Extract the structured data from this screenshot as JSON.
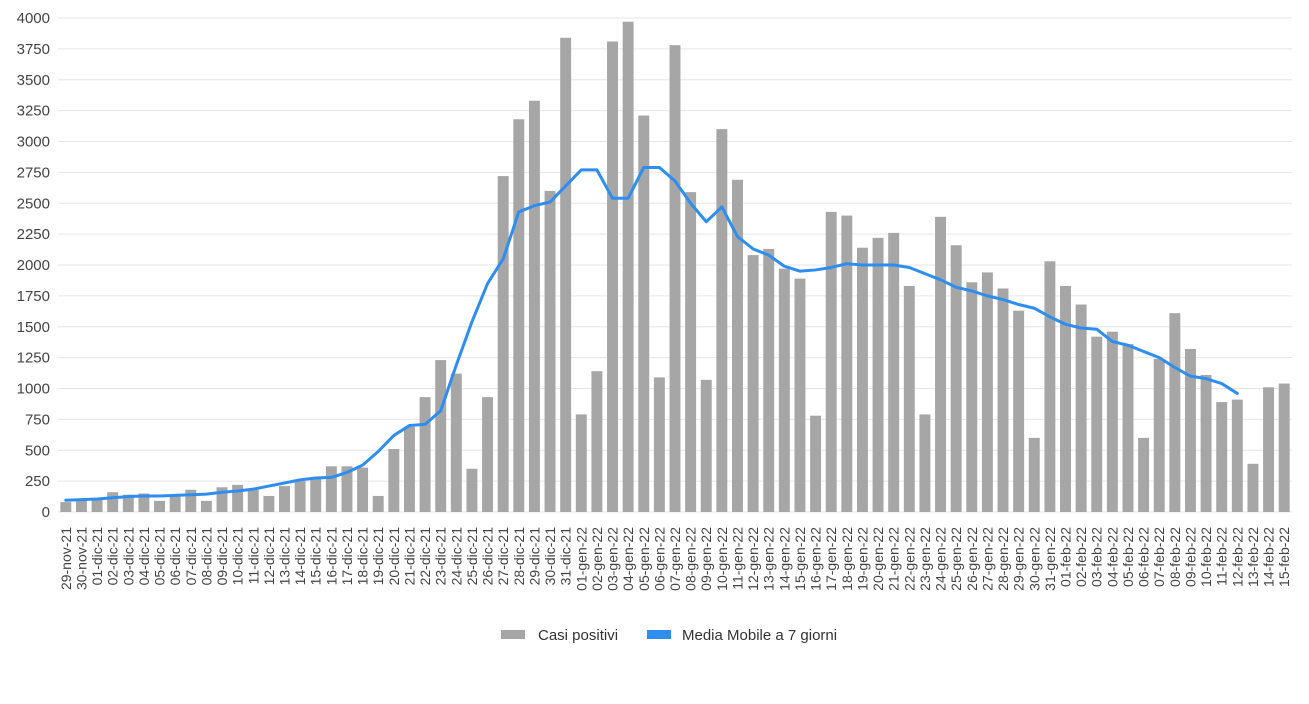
{
  "chart_data": {
    "type": "bar",
    "title": "",
    "xlabel": "",
    "ylabel": "",
    "ylim": [
      0,
      4000
    ],
    "yticks": [
      0,
      250,
      500,
      750,
      1000,
      1250,
      1500,
      1750,
      2000,
      2250,
      2500,
      2750,
      3000,
      3250,
      3500,
      3750,
      4000
    ],
    "grid": true,
    "legend_position": "bottom-center",
    "categories": [
      "29-nov-21",
      "30-nov-21",
      "01-dic-21",
      "02-dic-21",
      "03-dic-21",
      "04-dic-21",
      "05-dic-21",
      "06-dic-21",
      "07-dic-21",
      "08-dic-21",
      "09-dic-21",
      "10-dic-21",
      "11-dic-21",
      "12-dic-21",
      "13-dic-21",
      "14-dic-21",
      "15-dic-21",
      "16-dic-21",
      "17-dic-21",
      "18-dic-21",
      "19-dic-21",
      "20-dic-21",
      "21-dic-21",
      "22-dic-21",
      "23-dic-21",
      "24-dic-21",
      "25-dic-21",
      "26-dic-21",
      "27-dic-21",
      "28-dic-21",
      "29-dic-21",
      "30-dic-21",
      "31-dic-21",
      "01-gen-22",
      "02-gen-22",
      "03-gen-22",
      "04-gen-22",
      "05-gen-22",
      "06-gen-22",
      "07-gen-22",
      "08-gen-22",
      "09-gen-22",
      "10-gen-22",
      "11-gen-22",
      "12-gen-22",
      "13-gen-22",
      "14-gen-22",
      "15-gen-22",
      "16-gen-22",
      "17-gen-22",
      "18-gen-22",
      "19-gen-22",
      "20-gen-22",
      "21-gen-22",
      "22-gen-22",
      "23-gen-22",
      "24-gen-22",
      "25-gen-22",
      "26-gen-22",
      "27-gen-22",
      "28-gen-22",
      "29-gen-22",
      "30-gen-22",
      "31-gen-22",
      "01-feb-22",
      "02-feb-22",
      "03-feb-22",
      "04-feb-22",
      "05-feb-22",
      "06-feb-22",
      "07-feb-22",
      "08-feb-22",
      "09-feb-22",
      "10-feb-22",
      "11-feb-22",
      "12-feb-22",
      "13-feb-22",
      "14-feb-22",
      "15-feb-22"
    ],
    "series": [
      {
        "name": "Casi positivi",
        "kind": "bar",
        "color": "#a6a6a6",
        "values": [
          80,
          105,
          100,
          160,
          140,
          150,
          90,
          140,
          180,
          90,
          200,
          220,
          180,
          130,
          210,
          250,
          270,
          370,
          370,
          360,
          130,
          510,
          690,
          930,
          1230,
          1120,
          350,
          930,
          2720,
          3180,
          3330,
          2600,
          3840,
          790,
          1140,
          3810,
          3970,
          3210,
          1090,
          3780,
          2590,
          1070,
          3100,
          2690,
          2080,
          2130,
          1970,
          1890,
          780,
          2430,
          2400,
          2140,
          2220,
          2260,
          1830,
          790,
          2390,
          2160,
          1860,
          1940,
          1810,
          1630,
          600,
          2030,
          1830,
          1680,
          1420,
          1460,
          1360,
          600,
          1240,
          1610,
          1320,
          1110,
          890,
          910,
          390,
          1010,
          1040
        ]
      },
      {
        "name": "Media Mobile a 7 giorni",
        "kind": "line",
        "color": "#2e8ef0",
        "values": [
          95,
          100,
          105,
          115,
          125,
          130,
          130,
          135,
          140,
          145,
          160,
          170,
          185,
          210,
          235,
          260,
          275,
          280,
          320,
          380,
          490,
          620,
          700,
          710,
          820,
          1190,
          1540,
          1850,
          2050,
          2430,
          2480,
          2510,
          2640,
          2770,
          2770,
          2540,
          2540,
          2790,
          2790,
          2680,
          2500,
          2350,
          2470,
          2230,
          2130,
          2080,
          1990,
          1950,
          1960,
          1980,
          2010,
          2000,
          2000,
          2000,
          1980,
          1930,
          1880,
          1820,
          1790,
          1750,
          1720,
          1680,
          1650,
          1580,
          1520,
          1490,
          1480,
          1380,
          1350,
          1300,
          1250,
          1170,
          1100,
          1080,
          1040,
          960,
          null,
          null,
          null
        ]
      }
    ]
  }
}
